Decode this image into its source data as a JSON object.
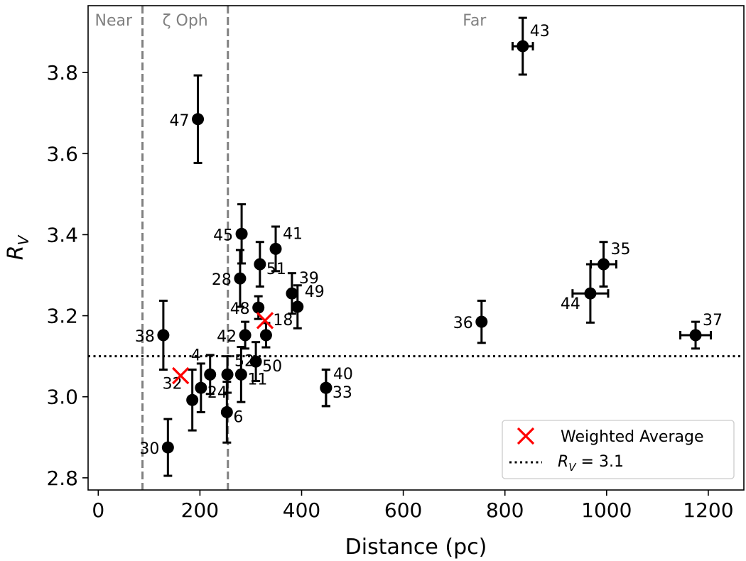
{
  "chart_data": {
    "type": "scatter",
    "title": "",
    "xlabel": "Distance (pc)",
    "ylabel_main": "R",
    "ylabel_sub": "V",
    "xlim": [
      -20,
      1270
    ],
    "ylim": [
      2.77,
      3.965
    ],
    "xticks": [
      0,
      200,
      400,
      600,
      800,
      1000,
      1200
    ],
    "yticks": [
      2.8,
      3.0,
      3.2,
      3.4,
      3.6,
      3.8
    ],
    "grid": false,
    "colors": {
      "points": "#000000",
      "average": "#ff0000",
      "boundary": "#808080",
      "reference": "#000000"
    },
    "regions": {
      "boundaries": [
        87,
        255
      ],
      "labels": [
        {
          "text": "Near",
          "x": 30
        },
        {
          "text": "ζ Oph",
          "x": 171
        },
        {
          "text": "Far",
          "x": 740
        }
      ]
    },
    "reference_line": {
      "y": 3.1,
      "label_main": "R",
      "label_sub": "V",
      "label_rest": " = 3.1"
    },
    "weighted_average": {
      "label": "Weighted Average",
      "points": [
        {
          "x": 162,
          "y": 3.052
        },
        {
          "x": 328,
          "y": 3.188
        }
      ]
    },
    "legend_position": "lower-right",
    "series": [
      {
        "id": "47",
        "x": 196,
        "y": 3.685,
        "yerr": 0.108,
        "xerr": 0,
        "label": "47",
        "label_pos": "left"
      },
      {
        "id": "45",
        "x": 282,
        "y": 3.402,
        "yerr": 0.073,
        "xerr": 0,
        "label": "45",
        "label_pos": "left"
      },
      {
        "id": "41",
        "x": 349,
        "y": 3.365,
        "yerr": 0.055,
        "xerr": 0,
        "label": "41",
        "label_pos": "right"
      },
      {
        "id": "51",
        "x": 318,
        "y": 3.327,
        "yerr": 0.055,
        "xerr": 0,
        "label": "51",
        "label_pos": "right-low"
      },
      {
        "id": "28",
        "x": 279,
        "y": 3.292,
        "yerr": 0.07,
        "xerr": 0,
        "label": "28",
        "label_pos": "left"
      },
      {
        "id": "39",
        "x": 381,
        "y": 3.255,
        "yerr": 0.05,
        "xerr": 0,
        "label": "39",
        "label_pos": "right"
      },
      {
        "id": "49",
        "x": 392,
        "y": 3.222,
        "yerr": 0.053,
        "xerr": 0,
        "label": "49",
        "label_pos": "right"
      },
      {
        "id": "48",
        "x": 315,
        "y": 3.22,
        "yerr": 0.028,
        "xerr": 0,
        "label": "48",
        "label_pos": "left"
      },
      {
        "id": "38",
        "x": 128,
        "y": 3.152,
        "yerr": 0.085,
        "xerr": 0,
        "label": "38",
        "label_pos": "left"
      },
      {
        "id": "42",
        "x": 289,
        "y": 3.152,
        "yerr": 0.033,
        "xerr": 0,
        "label": "42",
        "label_pos": "left"
      },
      {
        "id": "18",
        "x": 330,
        "y": 3.152,
        "yerr": 0.03,
        "xerr": 0,
        "label": "18",
        "label_pos": "right"
      },
      {
        "id": "50",
        "x": 310,
        "y": 3.087,
        "yerr": 0.048,
        "xerr": 0,
        "label": "50",
        "label_pos": "right-low"
      },
      {
        "id": "52",
        "x": 254,
        "y": 3.055,
        "yerr": 0.045,
        "xerr": 0,
        "label": "52",
        "label_pos": "right-high"
      },
      {
        "id": "11",
        "x": 281,
        "y": 3.055,
        "yerr": 0.068,
        "xerr": 0,
        "label": "11",
        "label_pos": "right-low"
      },
      {
        "id": "4",
        "x": 220,
        "y": 3.055,
        "yerr": 0.048,
        "xerr": 0,
        "label": "4",
        "label_pos": "top"
      },
      {
        "id": "24",
        "x": 202,
        "y": 3.022,
        "yerr": 0.06,
        "xerr": 0,
        "label": "24",
        "label_pos": "right-low"
      },
      {
        "id": "40",
        "x": 448,
        "y": 3.022,
        "yerr": 0.045,
        "xerr": 0,
        "label": "40",
        "label_pos": "right-high"
      },
      {
        "id": "33",
        "x": 448,
        "y": 3.022,
        "yerr": 0.045,
        "xerr": 0,
        "label": "33",
        "label_pos": "right-low"
      },
      {
        "id": "32",
        "x": 185,
        "y": 2.992,
        "yerr": 0.075,
        "xerr": 0,
        "label": "32",
        "label_pos": "left-high"
      },
      {
        "id": "6",
        "x": 253,
        "y": 2.962,
        "yerr": 0.075,
        "xerr": 0,
        "label": "6",
        "label_pos": "right-low"
      },
      {
        "id": "30",
        "x": 137,
        "y": 2.875,
        "yerr": 0.07,
        "xerr": 0,
        "label": "30",
        "label_pos": "left"
      },
      {
        "id": "43",
        "x": 835,
        "y": 3.865,
        "yerr": 0.07,
        "xerr": 20,
        "label": "43",
        "label_pos": "right"
      },
      {
        "id": "36",
        "x": 754,
        "y": 3.185,
        "yerr": 0.052,
        "xerr": 0,
        "label": "36",
        "label_pos": "left"
      },
      {
        "id": "35",
        "x": 994,
        "y": 3.327,
        "yerr": 0.055,
        "xerr": 25,
        "label": "35",
        "label_pos": "right"
      },
      {
        "id": "44",
        "x": 968,
        "y": 3.255,
        "yerr": 0.072,
        "xerr": 35,
        "label": "44",
        "label_pos": "left-low"
      },
      {
        "id": "37",
        "x": 1175,
        "y": 3.152,
        "yerr": 0.033,
        "xerr": 30,
        "label": "37",
        "label_pos": "right"
      }
    ]
  }
}
